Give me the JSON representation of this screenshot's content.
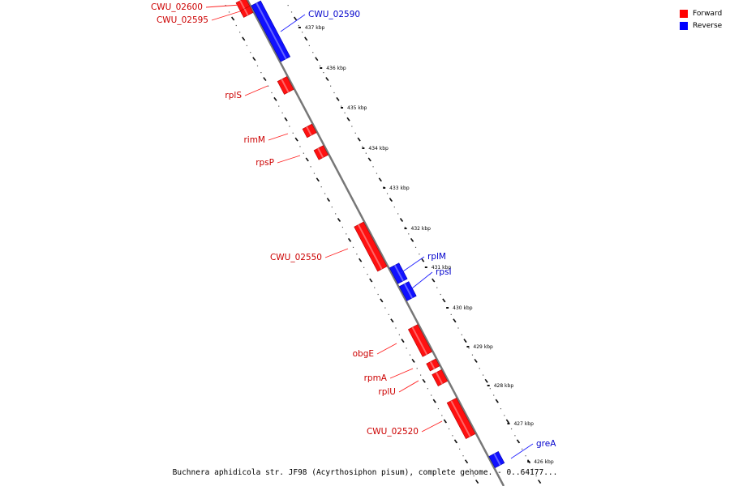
{
  "colors": {
    "forward": "#ff1a1a",
    "reverse": "#1a1aff",
    "forward_label": "#cc0000",
    "reverse_label": "#0000cc",
    "backbone": "#777777"
  },
  "legend": {
    "forward": "Forward",
    "reverse": "Reverse"
  },
  "caption": "Buchnera aphidicola str. JF98 (Acyrthosiphon pisum), complete genome. - 0..64177...",
  "ruler": {
    "unit": "kbp",
    "ticks": [
      "437 kbp",
      "436 kbp",
      "435 kbp",
      "434 kbp",
      "433 kbp",
      "432 kbp",
      "431 kbp",
      "430 kbp",
      "429 kbp",
      "428 kbp",
      "427 kbp",
      "426 kbp"
    ]
  },
  "genes": [
    {
      "name": "CWU_02600",
      "strand": "forward"
    },
    {
      "name": "CWU_02595",
      "strand": "forward"
    },
    {
      "name": "CWU_02590",
      "strand": "reverse"
    },
    {
      "name": "rplS",
      "strand": "forward"
    },
    {
      "name": "rimM",
      "strand": "forward"
    },
    {
      "name": "rpsP",
      "strand": "forward"
    },
    {
      "name": "CWU_02550",
      "strand": "forward"
    },
    {
      "name": "rplM",
      "strand": "reverse"
    },
    {
      "name": "rpsI",
      "strand": "reverse"
    },
    {
      "name": "obgE",
      "strand": "forward"
    },
    {
      "name": "rpmA",
      "strand": "forward"
    },
    {
      "name": "rplU",
      "strand": "forward"
    },
    {
      "name": "CWU_02520",
      "strand": "forward"
    },
    {
      "name": "greA",
      "strand": "reverse"
    }
  ]
}
